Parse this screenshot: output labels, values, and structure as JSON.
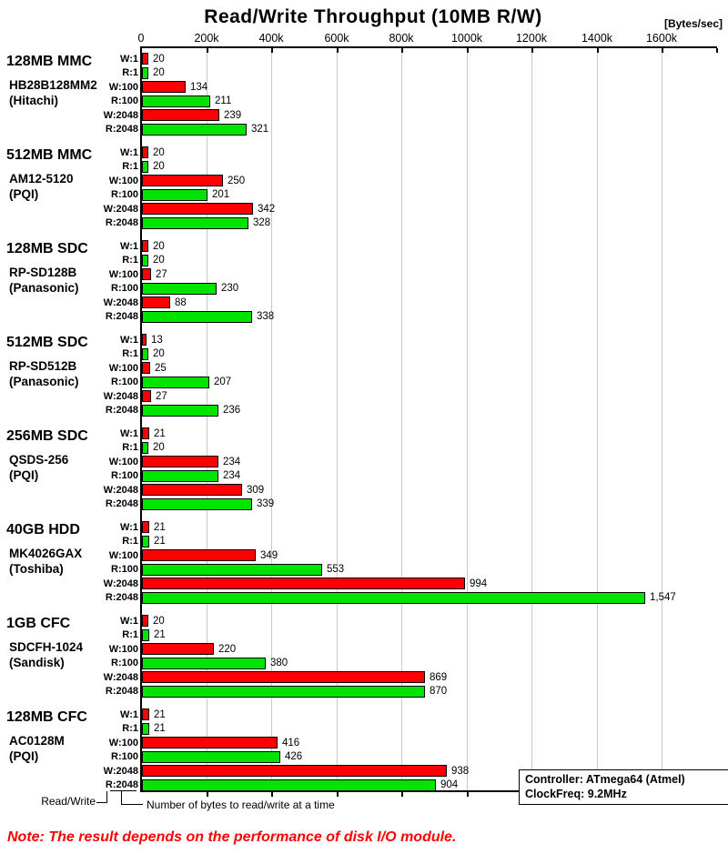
{
  "title": "Read/Write Throughput (10MB R/W)",
  "units_label": "[Bytes/sec]",
  "axis": {
    "tick_labels": [
      "0",
      "200k",
      "400k",
      "600k",
      "800k",
      "1000k",
      "1200k",
      "1400k",
      "1600k"
    ],
    "tick_step_bytes_per_sec": 200000,
    "xlim": [
      0,
      1770000
    ],
    "grid": true
  },
  "chart_data": {
    "type": "bar",
    "orientation": "horizontal",
    "title": "Read/Write Throughput (10MB R/W)",
    "xlabel": "[Bytes/sec]",
    "value_unit": "kBytes/sec (plotted against the k-scaled axis)",
    "bar_labels": [
      "W:1",
      "R:1",
      "W:100",
      "R:100",
      "W:2048",
      "R:2048"
    ],
    "colors": {
      "write": "#ff0000",
      "read": "#00e400",
      "bar_border": "#000000",
      "gridline": "#c8c8c8"
    },
    "groups": [
      {
        "name": "128MB MMC",
        "model": "HB28B128MM2",
        "maker": "(Hitachi)",
        "values": [
          20,
          20,
          134,
          211,
          239,
          321
        ]
      },
      {
        "name": "512MB MMC",
        "model": "AM12-5120",
        "maker": "(PQI)",
        "values": [
          20,
          20,
          250,
          201,
          342,
          328
        ]
      },
      {
        "name": "128MB SDC",
        "model": "RP-SD128B",
        "maker": "(Panasonic)",
        "values": [
          20,
          20,
          27,
          230,
          88,
          338
        ]
      },
      {
        "name": "512MB SDC",
        "model": "RP-SD512B",
        "maker": "(Panasonic)",
        "values": [
          13,
          20,
          25,
          207,
          27,
          236
        ]
      },
      {
        "name": "256MB SDC",
        "model": "QSDS-256",
        "maker": "(PQI)",
        "values": [
          21,
          20,
          234,
          234,
          309,
          339
        ]
      },
      {
        "name": "40GB HDD",
        "model": "MK4026GAX",
        "maker": "(Toshiba)",
        "values": [
          21,
          21,
          349,
          553,
          994,
          1547
        ]
      },
      {
        "name": "1GB CFC",
        "model": "SDCFH-1024",
        "maker": "(Sandisk)",
        "values": [
          20,
          21,
          220,
          380,
          869,
          870
        ]
      },
      {
        "name": "128MB CFC",
        "model": "AC0128M",
        "maker": "(PQI)",
        "values": [
          21,
          21,
          416,
          426,
          938,
          904
        ]
      }
    ]
  },
  "legend": {
    "read_write_label": "Read/Write",
    "bytes_label": "Number of bytes to read/write at a time"
  },
  "info_box": {
    "line1": "Controller: ATmega64 (Atmel)",
    "line2": "ClockFreq: 9.2MHz"
  },
  "note": "Note: The result depends on the performance of disk I/O module."
}
